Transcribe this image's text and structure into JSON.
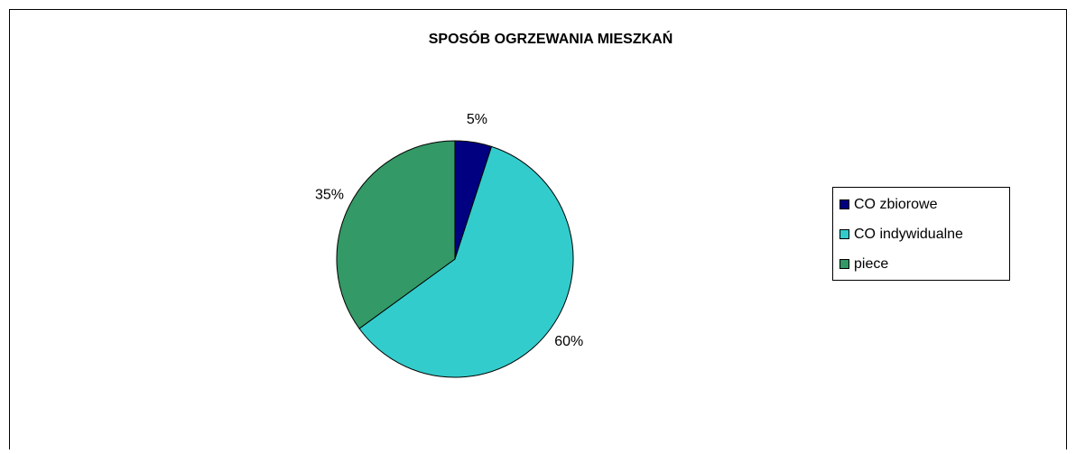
{
  "chart_data": {
    "type": "pie",
    "title": "SPOSÓB OGRZEWANIA MIESZKAŃ",
    "categories": [
      "CO zbiorowe",
      "CO indywidualne",
      "piece"
    ],
    "values": [
      5,
      60,
      35
    ],
    "value_labels": [
      "5%",
      "60%",
      "35%"
    ],
    "colors": [
      "#000080",
      "#33cccc",
      "#339966"
    ],
    "legend": "right"
  }
}
